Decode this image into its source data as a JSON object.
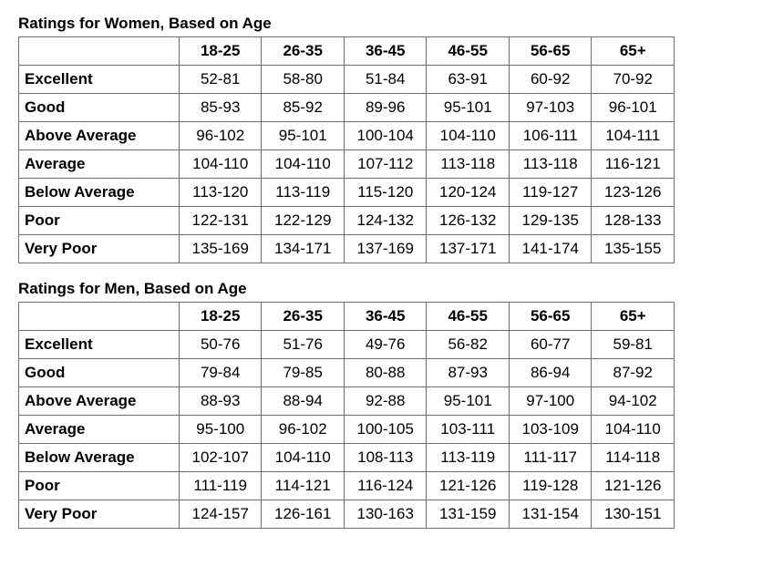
{
  "colors": {
    "text": "#000000",
    "border": "#6d6d6d",
    "background": "#ffffff"
  },
  "typography": {
    "font_family": "Arial, Helvetica, sans-serif",
    "title_fontsize_pt": 13,
    "cell_fontsize_pt": 13,
    "title_weight": "bold",
    "header_weight": "bold",
    "rowlabel_weight": "bold"
  },
  "tables": {
    "women": {
      "title": "Ratings for Women, Based on Age",
      "columns": [
        "18-25",
        "26-35",
        "36-45",
        "46-55",
        "56-65",
        "65+"
      ],
      "rows": [
        {
          "label": "Excellent",
          "values": [
            "52-81",
            "58-80",
            "51-84",
            "63-91",
            "60-92",
            "70-92"
          ]
        },
        {
          "label": "Good",
          "values": [
            "85-93",
            "85-92",
            "89-96",
            "95-101",
            "97-103",
            "96-101"
          ]
        },
        {
          "label": "Above Average",
          "values": [
            "96-102",
            "95-101",
            "100-104",
            "104-110",
            "106-111",
            "104-111"
          ]
        },
        {
          "label": "Average",
          "values": [
            "104-110",
            "104-110",
            "107-112",
            "113-118",
            "113-118",
            "116-121"
          ]
        },
        {
          "label": "Below Average",
          "values": [
            "113-120",
            "113-119",
            "115-120",
            "120-124",
            "119-127",
            "123-126"
          ]
        },
        {
          "label": "Poor",
          "values": [
            "122-131",
            "122-129",
            "124-132",
            "126-132",
            "129-135",
            "128-133"
          ]
        },
        {
          "label": "Very Poor",
          "values": [
            "135-169",
            "134-171",
            "137-169",
            "137-171",
            "141-174",
            "135-155"
          ]
        }
      ]
    },
    "men": {
      "title": "Ratings for Men, Based on Age",
      "columns": [
        "18-25",
        "26-35",
        "36-45",
        "46-55",
        "56-65",
        "65+"
      ],
      "rows": [
        {
          "label": "Excellent",
          "values": [
            "50-76",
            "51-76",
            "49-76",
            "56-82",
            "60-77",
            "59-81"
          ]
        },
        {
          "label": "Good",
          "values": [
            "79-84",
            "79-85",
            "80-88",
            "87-93",
            "86-94",
            "87-92"
          ]
        },
        {
          "label": "Above Average",
          "values": [
            "88-93",
            "88-94",
            "92-88",
            "95-101",
            "97-100",
            "94-102"
          ]
        },
        {
          "label": "Average",
          "values": [
            "95-100",
            "96-102",
            "100-105",
            "103-111",
            "103-109",
            "104-110"
          ]
        },
        {
          "label": "Below Average",
          "values": [
            "102-107",
            "104-110",
            "108-113",
            "113-119",
            "111-117",
            "114-118"
          ]
        },
        {
          "label": "Poor",
          "values": [
            "111-119",
            "114-121",
            "116-124",
            "121-126",
            "119-128",
            "121-126"
          ]
        },
        {
          "label": "Very Poor",
          "values": [
            "124-157",
            "126-161",
            "130-163",
            "131-159",
            "131-154",
            "130-151"
          ]
        }
      ]
    }
  }
}
